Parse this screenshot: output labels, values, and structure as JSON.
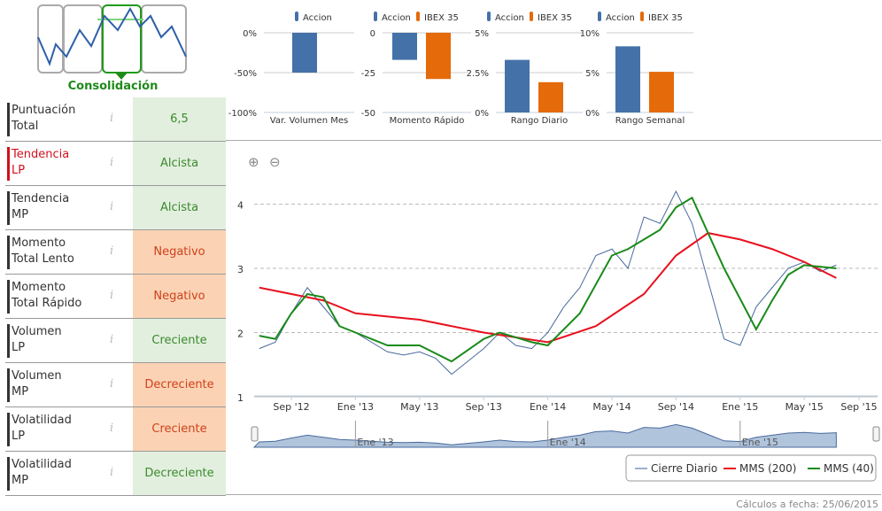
{
  "logo": {
    "label": "Consolidación"
  },
  "indicators": [
    {
      "label1": "Puntuación",
      "label2": "Total",
      "value": "6,5",
      "bg": "g",
      "tone": "pos",
      "highlight": false
    },
    {
      "label1": "Tendencia",
      "label2": "LP",
      "value": "Alcista",
      "bg": "g",
      "tone": "pos",
      "highlight": true
    },
    {
      "label1": "Tendencia",
      "label2": "MP",
      "value": "Alcista",
      "bg": "g",
      "tone": "pos",
      "highlight": false
    },
    {
      "label1": "Momento",
      "label2": "Total Lento",
      "value": "Negativo",
      "bg": "o",
      "tone": "neg",
      "highlight": false
    },
    {
      "label1": "Momento",
      "label2": "Total Rápido",
      "value": "Negativo",
      "bg": "o",
      "tone": "neg",
      "highlight": false
    },
    {
      "label1": "Volumen",
      "label2": "LP",
      "value": "Creciente",
      "bg": "g",
      "tone": "pos",
      "highlight": false
    },
    {
      "label1": "Volumen",
      "label2": "MP",
      "value": "Decreciente",
      "bg": "o",
      "tone": "neg",
      "highlight": false
    },
    {
      "label1": "Volatilidad",
      "label2": "LP",
      "value": "Creciente",
      "bg": "o",
      "tone": "neg",
      "highlight": false
    },
    {
      "label1": "Volatilidad",
      "label2": "MP",
      "value": "Decreciente",
      "bg": "g",
      "tone": "pos",
      "highlight": false
    }
  ],
  "info_icon": "i",
  "colors": {
    "accion": "#4472a8",
    "ibex": "#e46a0a",
    "close": "#4a6a9e",
    "mms200": "#e8101e",
    "mms40": "#1a8a1a"
  },
  "chart_data": [
    {
      "type": "bar",
      "title": "Var. Volumen Mes",
      "legend": [
        "Accion"
      ],
      "ticks": [
        "0%",
        "-50%",
        "-100%"
      ],
      "ylim": [
        -100,
        0
      ],
      "values": [
        -50
      ]
    },
    {
      "type": "bar",
      "title": "Momento Rápido",
      "legend": [
        "Accion",
        "IBEX 35"
      ],
      "ticks": [
        "0",
        "-25",
        "-50"
      ],
      "ylim": [
        -50,
        0
      ],
      "values": [
        -17,
        -29
      ]
    },
    {
      "type": "bar",
      "title": "Rango Diario",
      "legend": [
        "Accion",
        "IBEX 35"
      ],
      "ticks": [
        "5%",
        "2.5%",
        "0%"
      ],
      "ylim": [
        0,
        5
      ],
      "values": [
        3.3,
        1.9
      ]
    },
    {
      "type": "bar",
      "title": "Rango Semanal",
      "legend": [
        "Accion",
        "IBEX 35"
      ],
      "ticks": [
        "10%",
        "5%",
        "0%"
      ],
      "ylim": [
        0,
        10
      ],
      "values": [
        8.3,
        5.1
      ]
    },
    {
      "type": "line",
      "yticks": [
        "1",
        "2",
        "3",
        "4"
      ],
      "ylim": [
        1,
        4.3
      ],
      "xticks": [
        "Sep '12",
        "Ene '13",
        "May '13",
        "Sep '13",
        "Ene '14",
        "May '14",
        "Sep '14",
        "Ene '15",
        "May '15",
        "Sep '15"
      ],
      "navigator_ticks": [
        "Ene '13",
        "Ene '14",
        "Ene '15"
      ],
      "series": [
        {
          "name": "Cierre Diario",
          "x": [
            "2012-07",
            "2012-08",
            "2012-09",
            "2012-10",
            "2012-11",
            "2012-12",
            "2013-01",
            "2013-02",
            "2013-03",
            "2013-04",
            "2013-05",
            "2013-06",
            "2013-07",
            "2013-08",
            "2013-09",
            "2013-10",
            "2013-11",
            "2013-12",
            "2014-01",
            "2014-02",
            "2014-03",
            "2014-04",
            "2014-05",
            "2014-06",
            "2014-07",
            "2014-08",
            "2014-09",
            "2014-10",
            "2014-11",
            "2014-12",
            "2015-01",
            "2015-02",
            "2015-03",
            "2015-04",
            "2015-05",
            "2015-06",
            "2015-07"
          ],
          "y": [
            1.75,
            1.85,
            2.3,
            2.7,
            2.4,
            2.1,
            2.0,
            1.85,
            1.7,
            1.65,
            1.7,
            1.6,
            1.35,
            1.55,
            1.75,
            2.0,
            1.8,
            1.75,
            2.0,
            2.4,
            2.7,
            3.2,
            3.3,
            3.0,
            3.8,
            3.7,
            4.2,
            3.7,
            2.8,
            1.9,
            1.8,
            2.4,
            2.7,
            3.0,
            3.1,
            2.95,
            3.05
          ]
        },
        {
          "name": "MMS (200)",
          "x": [
            "2012-07",
            "2012-11",
            "2013-01",
            "2013-05",
            "2013-09",
            "2014-01",
            "2014-04",
            "2014-07",
            "2014-09",
            "2014-11",
            "2015-01",
            "2015-03",
            "2015-05",
            "2015-07"
          ],
          "y": [
            2.7,
            2.5,
            2.3,
            2.2,
            2.0,
            1.85,
            2.1,
            2.6,
            3.2,
            3.55,
            3.45,
            3.3,
            3.1,
            2.85
          ]
        },
        {
          "name": "MMS (40)",
          "x": [
            "2012-07",
            "2012-08",
            "2012-09",
            "2012-10",
            "2012-11",
            "2012-12",
            "2013-01",
            "2013-03",
            "2013-05",
            "2013-07",
            "2013-09",
            "2013-10",
            "2013-12",
            "2014-01",
            "2014-03",
            "2014-05",
            "2014-06",
            "2014-08",
            "2014-09",
            "2014-10",
            "2014-12",
            "2015-02",
            "2015-03",
            "2015-04",
            "2015-05",
            "2015-07"
          ],
          "y": [
            1.95,
            1.9,
            2.3,
            2.6,
            2.55,
            2.1,
            2.0,
            1.8,
            1.8,
            1.55,
            1.9,
            2.0,
            1.85,
            1.8,
            2.3,
            3.2,
            3.3,
            3.6,
            3.95,
            4.1,
            3.0,
            2.05,
            2.5,
            2.9,
            3.05,
            3.0
          ]
        }
      ]
    }
  ],
  "footer": "Cálculos a fecha: 25/06/2015"
}
